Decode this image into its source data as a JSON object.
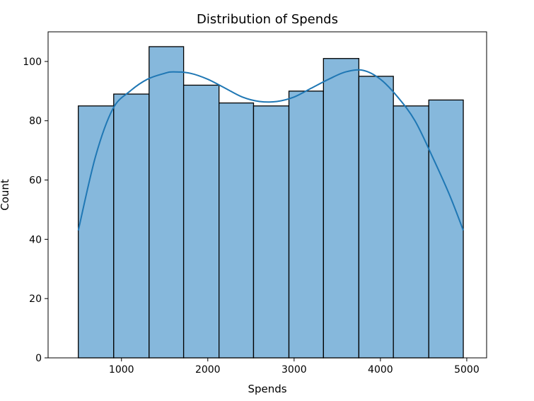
{
  "chart_data": {
    "type": "bar",
    "title": "Distribution of Spends",
    "xlabel": "Spends",
    "ylabel": "Count",
    "xlim": [
      150,
      5230
    ],
    "ylim": [
      0,
      110
    ],
    "grid": false,
    "legend": "none",
    "x_ticks": [
      1000,
      2000,
      3000,
      4000,
      5000
    ],
    "y_ticks": [
      0,
      20,
      40,
      60,
      80,
      100
    ],
    "bins": [
      {
        "start": 500,
        "end": 910,
        "count": 85
      },
      {
        "start": 910,
        "end": 1320,
        "count": 89
      },
      {
        "start": 1320,
        "end": 1720,
        "count": 105
      },
      {
        "start": 1720,
        "end": 2130,
        "count": 92
      },
      {
        "start": 2130,
        "end": 2530,
        "count": 86
      },
      {
        "start": 2530,
        "end": 2940,
        "count": 85
      },
      {
        "start": 2940,
        "end": 3340,
        "count": 90
      },
      {
        "start": 3340,
        "end": 3750,
        "count": 101
      },
      {
        "start": 3750,
        "end": 4150,
        "count": 95
      },
      {
        "start": 4150,
        "end": 4560,
        "count": 85
      },
      {
        "start": 4560,
        "end": 4960,
        "count": 87
      }
    ],
    "kde": {
      "x": [
        500,
        700,
        900,
        1100,
        1300,
        1500,
        1600,
        1800,
        2000,
        2200,
        2400,
        2600,
        2800,
        3000,
        3200,
        3400,
        3600,
        3800,
        4000,
        4200,
        4400,
        4600,
        4800,
        4960
      ],
      "y": [
        43,
        68,
        84,
        90,
        94,
        96,
        96.5,
        96,
        94,
        91,
        88,
        86.5,
        86.5,
        88,
        91,
        94,
        96.5,
        97,
        94,
        88,
        80,
        68,
        55,
        43
      ]
    },
    "colors": {
      "bar_fill": "#86b8dc",
      "bar_edge": "#000000",
      "kde_line": "#1f77b4",
      "axes": "#000000"
    }
  }
}
